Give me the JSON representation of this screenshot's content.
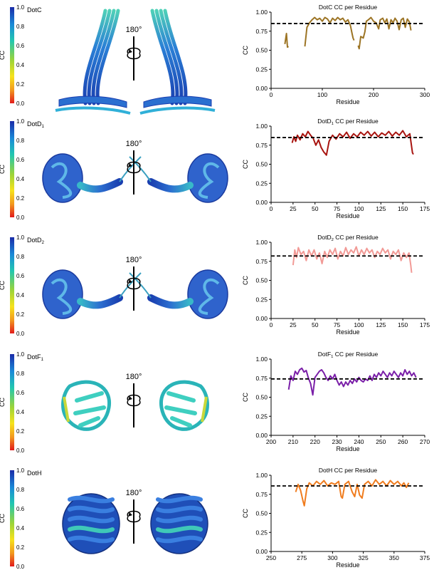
{
  "colorbar": {
    "label": "CC",
    "ticks": [
      "1.0",
      "0.8",
      "0.6",
      "0.4",
      "0.2",
      "0.0"
    ]
  },
  "rotation_label": "180°",
  "panels": [
    {
      "protein_label": "DotC",
      "protein_sub": "",
      "color": "#9c7424"
    },
    {
      "protein_label": "DotD",
      "protein_sub": "1",
      "color": "#a8140f"
    },
    {
      "protein_label": "DotD",
      "protein_sub": "2",
      "color": "#f29a96"
    },
    {
      "protein_label": "DotF",
      "protein_sub": "1",
      "color": "#7a1fa8"
    },
    {
      "protein_label": "DotH",
      "protein_sub": "",
      "color": "#f07c1e"
    }
  ],
  "chart_data": [
    {
      "type": "line",
      "title": "DotC CC per Residue",
      "title_main": "DotC",
      "title_sub": "",
      "title_rest": " CC per Residue",
      "xlabel": "Residue",
      "ylabel": "CC",
      "xlim": [
        0,
        300
      ],
      "ylim": [
        0,
        1
      ],
      "xticks": [
        0,
        100,
        200,
        300
      ],
      "yticks": [
        0,
        0.25,
        0.5,
        0.75,
        1.0
      ],
      "threshold": 0.85,
      "series": [
        {
          "values": [
            [
              27,
              0.58
            ],
            [
              30,
              0.72
            ],
            [
              32,
              0.54
            ],
            [
              34,
              0.55
            ]
          ]
        },
        {
          "values": [
            [
              66,
              0.55
            ],
            [
              70,
              0.8
            ],
            [
              75,
              0.86
            ],
            [
              80,
              0.9
            ],
            [
              85,
              0.93
            ],
            [
              90,
              0.9
            ],
            [
              95,
              0.92
            ],
            [
              100,
              0.88
            ],
            [
              105,
              0.93
            ],
            [
              110,
              0.91
            ],
            [
              115,
              0.86
            ],
            [
              120,
              0.92
            ],
            [
              125,
              0.89
            ],
            [
              130,
              0.93
            ],
            [
              135,
              0.9
            ],
            [
              140,
              0.92
            ],
            [
              145,
              0.87
            ],
            [
              150,
              0.9
            ],
            [
              155,
              0.82
            ],
            [
              158,
              0.72
            ],
            [
              160,
              0.66
            ],
            [
              162,
              0.63
            ]
          ]
        },
        {
          "values": [
            [
              170,
              0.56
            ],
            [
              172,
              0.52
            ],
            [
              175,
              0.68
            ],
            [
              180,
              0.66
            ],
            [
              183,
              0.74
            ],
            [
              186,
              0.88
            ],
            [
              190,
              0.9
            ],
            [
              195,
              0.93
            ],
            [
              200,
              0.88
            ],
            [
              205,
              0.86
            ],
            [
              210,
              0.78
            ],
            [
              213,
              0.9
            ],
            [
              218,
              0.92
            ],
            [
              222,
              0.86
            ],
            [
              226,
              0.91
            ],
            [
              230,
              0.78
            ],
            [
              234,
              0.9
            ],
            [
              238,
              0.86
            ],
            [
              242,
              0.92
            ],
            [
              246,
              0.88
            ],
            [
              250,
              0.77
            ],
            [
              254,
              0.9
            ],
            [
              258,
              0.92
            ],
            [
              262,
              0.8
            ],
            [
              266,
              0.91
            ],
            [
              270,
              0.87
            ],
            [
              273,
              0.76
            ]
          ]
        }
      ]
    },
    {
      "type": "line",
      "title": "DotD1 CC per Residue",
      "title_main": "DotD",
      "title_sub": "1",
      "title_rest": " CC per Residue",
      "xlabel": "Residue",
      "ylabel": "CC",
      "xlim": [
        0,
        175
      ],
      "ylim": [
        0,
        1
      ],
      "xticks": [
        0,
        25,
        50,
        75,
        100,
        125,
        150,
        175
      ],
      "yticks": [
        0,
        0.25,
        0.5,
        0.75,
        1.0
      ],
      "threshold": 0.85,
      "series": [
        {
          "values": [
            [
              24,
              0.78
            ],
            [
              26,
              0.86
            ],
            [
              28,
              0.8
            ],
            [
              30,
              0.88
            ],
            [
              33,
              0.82
            ],
            [
              36,
              0.9
            ],
            [
              39,
              0.86
            ],
            [
              42,
              0.93
            ],
            [
              45,
              0.88
            ],
            [
              48,
              0.84
            ],
            [
              51,
              0.75
            ],
            [
              54,
              0.82
            ],
            [
              57,
              0.72
            ],
            [
              60,
              0.66
            ],
            [
              63,
              0.62
            ],
            [
              66,
              0.8
            ],
            [
              70,
              0.88
            ],
            [
              74,
              0.83
            ],
            [
              78,
              0.9
            ],
            [
              82,
              0.86
            ],
            [
              86,
              0.92
            ],
            [
              90,
              0.84
            ],
            [
              94,
              0.9
            ],
            [
              98,
              0.86
            ],
            [
              102,
              0.92
            ],
            [
              106,
              0.88
            ],
            [
              110,
              0.93
            ],
            [
              114,
              0.87
            ],
            [
              118,
              0.92
            ],
            [
              122,
              0.86
            ],
            [
              126,
              0.91
            ],
            [
              130,
              0.88
            ],
            [
              134,
              0.93
            ],
            [
              138,
              0.87
            ],
            [
              142,
              0.92
            ],
            [
              146,
              0.88
            ],
            [
              150,
              0.94
            ],
            [
              154,
              0.86
            ],
            [
              158,
              0.9
            ],
            [
              161,
              0.65
            ],
            [
              162,
              0.63
            ]
          ]
        }
      ]
    },
    {
      "type": "line",
      "title": "DotD2 CC per Residue",
      "title_main": "DotD",
      "title_sub": "2",
      "title_rest": " CC per Residue",
      "xlabel": "Residue",
      "ylabel": "CC",
      "xlim": [
        0,
        175
      ],
      "ylim": [
        0,
        1
      ],
      "xticks": [
        0,
        25,
        50,
        75,
        100,
        125,
        150,
        175
      ],
      "yticks": [
        0,
        0.25,
        0.5,
        0.75,
        1.0
      ],
      "threshold": 0.82,
      "series": [
        {
          "values": [
            [
              25,
              0.7
            ],
            [
              27,
              0.9
            ],
            [
              29,
              0.8
            ],
            [
              31,
              0.93
            ],
            [
              34,
              0.84
            ],
            [
              37,
              0.88
            ],
            [
              40,
              0.76
            ],
            [
              43,
              0.9
            ],
            [
              46,
              0.82
            ],
            [
              49,
              0.9
            ],
            [
              52,
              0.78
            ],
            [
              55,
              0.86
            ],
            [
              58,
              0.72
            ],
            [
              61,
              0.88
            ],
            [
              64,
              0.8
            ],
            [
              67,
              0.9
            ],
            [
              70,
              0.84
            ],
            [
              73,
              0.92
            ],
            [
              76,
              0.78
            ],
            [
              79,
              0.88
            ],
            [
              82,
              0.82
            ],
            [
              85,
              0.93
            ],
            [
              88,
              0.84
            ],
            [
              91,
              0.9
            ],
            [
              94,
              0.86
            ],
            [
              97,
              0.94
            ],
            [
              100,
              0.82
            ],
            [
              103,
              0.9
            ],
            [
              106,
              0.84
            ],
            [
              109,
              0.92
            ],
            [
              112,
              0.86
            ],
            [
              115,
              0.9
            ],
            [
              118,
              0.8
            ],
            [
              121,
              0.88
            ],
            [
              124,
              0.84
            ],
            [
              127,
              0.92
            ],
            [
              130,
              0.86
            ],
            [
              133,
              0.9
            ],
            [
              136,
              0.78
            ],
            [
              139,
              0.88
            ],
            [
              142,
              0.84
            ],
            [
              145,
              0.9
            ],
            [
              148,
              0.76
            ],
            [
              151,
              0.86
            ],
            [
              154,
              0.8
            ],
            [
              157,
              0.86
            ],
            [
              159,
              0.7
            ],
            [
              160,
              0.6
            ]
          ]
        }
      ]
    },
    {
      "type": "line",
      "title": "DotF1 CC per Residue",
      "title_main": "DotF",
      "title_sub": "1",
      "title_rest": " CC per Residue",
      "xlabel": "Residue",
      "ylabel": "CC",
      "xlim": [
        200,
        270
      ],
      "ylim": [
        0,
        1
      ],
      "xticks": [
        200,
        210,
        220,
        230,
        240,
        250,
        260,
        270
      ],
      "yticks": [
        0,
        0.25,
        0.5,
        0.75,
        1.0
      ],
      "threshold": 0.74,
      "series": [
        {
          "values": [
            [
              208,
              0.6
            ],
            [
              209,
              0.78
            ],
            [
              210,
              0.72
            ],
            [
              211,
              0.84
            ],
            [
              212,
              0.8
            ],
            [
              213,
              0.86
            ],
            [
              214,
              0.88
            ],
            [
              215,
              0.83
            ],
            [
              216,
              0.85
            ],
            [
              217,
              0.75
            ],
            [
              218,
              0.68
            ],
            [
              219,
              0.53
            ],
            [
              220,
              0.76
            ],
            [
              221,
              0.8
            ],
            [
              222,
              0.84
            ],
            [
              223,
              0.86
            ],
            [
              224,
              0.82
            ],
            [
              225,
              0.76
            ],
            [
              226,
              0.72
            ],
            [
              227,
              0.78
            ],
            [
              228,
              0.74
            ],
            [
              229,
              0.8
            ],
            [
              230,
              0.72
            ],
            [
              231,
              0.66
            ],
            [
              232,
              0.7
            ],
            [
              233,
              0.64
            ],
            [
              234,
              0.7
            ],
            [
              235,
              0.66
            ],
            [
              236,
              0.72
            ],
            [
              237,
              0.68
            ],
            [
              238,
              0.74
            ],
            [
              239,
              0.7
            ],
            [
              240,
              0.76
            ],
            [
              241,
              0.72
            ],
            [
              242,
              0.7
            ],
            [
              243,
              0.74
            ],
            [
              244,
              0.72
            ],
            [
              245,
              0.78
            ],
            [
              246,
              0.72
            ],
            [
              247,
              0.8
            ],
            [
              248,
              0.76
            ],
            [
              249,
              0.82
            ],
            [
              250,
              0.78
            ],
            [
              251,
              0.84
            ],
            [
              252,
              0.8
            ],
            [
              253,
              0.76
            ],
            [
              254,
              0.82
            ],
            [
              255,
              0.78
            ],
            [
              256,
              0.84
            ],
            [
              257,
              0.8
            ],
            [
              258,
              0.76
            ],
            [
              259,
              0.82
            ],
            [
              260,
              0.78
            ],
            [
              261,
              0.86
            ],
            [
              262,
              0.8
            ],
            [
              263,
              0.84
            ],
            [
              264,
              0.78
            ],
            [
              265,
              0.82
            ],
            [
              266,
              0.76
            ]
          ]
        }
      ]
    },
    {
      "type": "line",
      "title": "DotH CC per Residue",
      "title_main": "DotH",
      "title_sub": "",
      "title_rest": " CC per Residue",
      "xlabel": "Residue",
      "ylabel": "CC",
      "xlim": [
        250,
        375
      ],
      "ylim": [
        0,
        1
      ],
      "xticks": [
        250,
        275,
        300,
        325,
        350,
        375
      ],
      "yticks": [
        0,
        0.25,
        0.5,
        0.75,
        1.0
      ],
      "threshold": 0.86,
      "series": [
        {
          "values": [
            [
              270,
              0.78
            ],
            [
              272,
              0.88
            ],
            [
              274,
              0.8
            ],
            [
              276,
              0.66
            ],
            [
              277,
              0.6
            ],
            [
              279,
              0.82
            ],
            [
              281,
              0.9
            ],
            [
              284,
              0.86
            ],
            [
              287,
              0.92
            ],
            [
              290,
              0.88
            ],
            [
              293,
              0.93
            ],
            [
              296,
              0.86
            ],
            [
              299,
              0.9
            ],
            [
              302,
              0.88
            ],
            [
              305,
              0.92
            ],
            [
              307,
              0.72
            ],
            [
              308,
              0.7
            ],
            [
              310,
              0.88
            ],
            [
              313,
              0.92
            ],
            [
              316,
              0.78
            ],
            [
              318,
              0.72
            ],
            [
              320,
              0.88
            ],
            [
              322,
              0.74
            ],
            [
              324,
              0.7
            ],
            [
              326,
              0.88
            ],
            [
              329,
              0.92
            ],
            [
              332,
              0.86
            ],
            [
              335,
              0.94
            ],
            [
              338,
              0.88
            ],
            [
              341,
              0.92
            ],
            [
              344,
              0.86
            ],
            [
              347,
              0.93
            ],
            [
              350,
              0.88
            ],
            [
              353,
              0.92
            ],
            [
              356,
              0.86
            ],
            [
              358,
              0.9
            ],
            [
              360,
              0.84
            ],
            [
              362,
              0.9
            ]
          ]
        }
      ]
    }
  ]
}
